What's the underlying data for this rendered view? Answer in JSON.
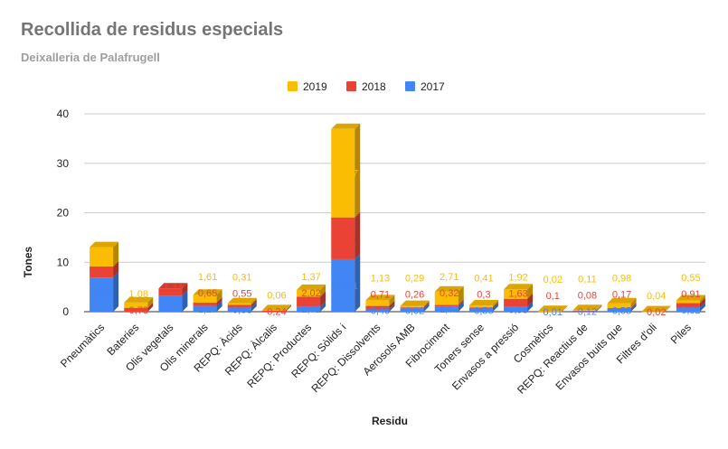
{
  "title": "Recollida de residus especials",
  "subtitle": "Deixalleria de Palafrugell",
  "chart_data": {
    "type": "bar",
    "stacked": true,
    "xlabel": "Residu",
    "ylabel": "Tones",
    "ylim": [
      0,
      40
    ],
    "yticks": [
      0,
      10,
      20,
      30,
      40
    ],
    "legend_position": "top",
    "categories": [
      "Pneumàtics",
      "Bateries",
      "Olis vegetals",
      "Olis minerals",
      "REPQ: Àcids",
      "REPQ: Àlcalis",
      "REPQ: Productes",
      "REPQ: Sòlids i",
      "REPQ: Dissolvents",
      "Aerosols AMB",
      "Fibrociment",
      "Toners sense",
      "Envasos a pressió",
      "Cosmètics",
      "REPQ: Reactius de",
      "Envasos buits que",
      "Filtres d'oli",
      "Piles"
    ],
    "series": [
      {
        "name": "2017",
        "color": "#4285f4",
        "values": [
          6.9,
          null,
          3.27,
          1.17,
          0.83,
          null,
          1.02,
          10.61,
          0.46,
          0.62,
          1.04,
          0.56,
          0.98,
          0.01,
          0.12,
          0.55,
          null,
          0.82
        ],
        "labels": [
          "6,90",
          "",
          "3,27",
          "1,17",
          "0,83",
          "",
          "1,02",
          "10,61",
          "0,46",
          "0,62",
          "1,04",
          "0,56",
          "0,98",
          "0,01",
          "0,12",
          "0,55",
          "",
          "0,82"
        ]
      },
      {
        "name": "2018",
        "color": "#ea4335",
        "values": [
          2.24,
          0.78,
          1.44,
          0.65,
          0.55,
          0.24,
          2.02,
          8.45,
          0.71,
          0.26,
          0.32,
          0.3,
          1.63,
          0.1,
          0.08,
          0.17,
          0.02,
          0.91
        ],
        "labels": [
          "2,24",
          "0,78",
          "1,44",
          "0,65",
          "0,55",
          "0,24",
          "2,02",
          "8,45",
          "0,71",
          "0,26",
          "0,32",
          "0,3",
          "1,63",
          "0,1",
          "0,08",
          "0,17",
          "0,02",
          "0,91"
        ]
      },
      {
        "name": "2019",
        "color": "#fbbc04",
        "values": [
          3.9,
          1.08,
          null,
          1.61,
          0.31,
          0.06,
          1.37,
          17.87,
          1.13,
          0.29,
          2.71,
          0.41,
          1.92,
          0.02,
          0.11,
          0.98,
          0.04,
          0.55
        ],
        "labels": [
          "3,9",
          "1,08",
          "",
          "1,61",
          "0,31",
          "0,06",
          "1,37",
          "17,87",
          "1,13",
          "0,29",
          "2,71",
          "0,41",
          "1,92",
          "0,02",
          "0,11",
          "0,98",
          "0,04",
          "0,55"
        ]
      }
    ]
  }
}
